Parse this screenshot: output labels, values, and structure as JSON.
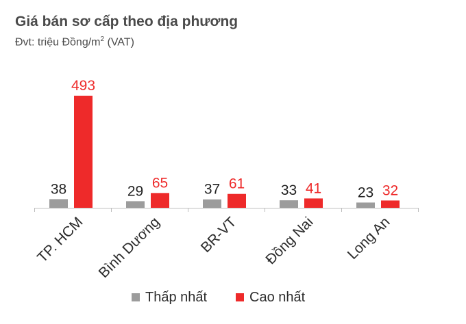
{
  "title": "Giá bán sơ cấp theo địa phương",
  "subtitle": {
    "prefix": "Đvt: triệu Đồng/m",
    "superscript": "2",
    "suffix": " (VAT)"
  },
  "colors": {
    "low": "#9c9c9c",
    "high": "#ee2a2a",
    "low_label": "#222222",
    "high_label": "#ee2a2a",
    "axis": "#bdbdbd"
  },
  "chart_data": {
    "type": "bar",
    "categories": [
      "TP. HCM",
      "Bình Dương",
      "BR-VT",
      "Đồng Nai",
      "Long An"
    ],
    "series": [
      {
        "name": "Thấp nhất",
        "values": [
          38,
          29,
          37,
          33,
          23
        ]
      },
      {
        "name": "Cao nhất",
        "values": [
          493,
          65,
          61,
          41,
          32
        ]
      }
    ],
    "ylim": [
      0,
      493
    ],
    "grid": false,
    "legend_position": "bottom"
  }
}
